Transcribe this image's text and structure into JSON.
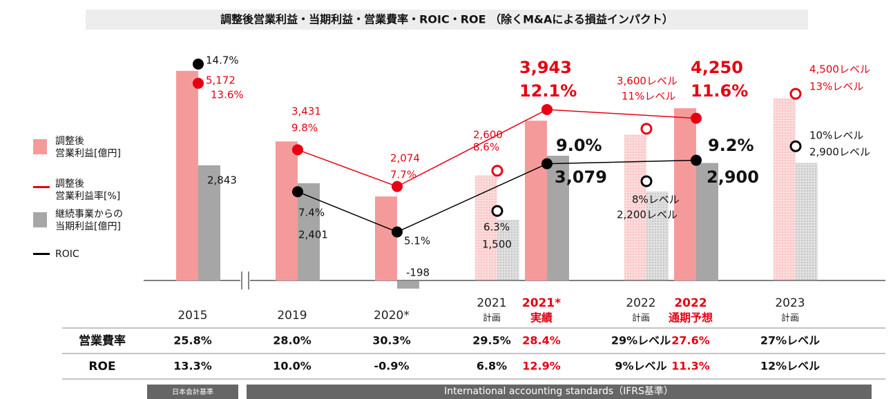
{
  "chart_data": {
    "type": "combo",
    "title": "調整後営業利益・当期利益・営業費率・ROIC・ROE （除くM&Aによる損益インパクト）",
    "categories": [
      {
        "label": "2015"
      },
      {
        "label": "2019"
      },
      {
        "label": "2020*"
      },
      {
        "label": "2021",
        "sub": "計画"
      },
      {
        "label": "2021*",
        "sub": "実績"
      },
      {
        "label": "2022",
        "sub": "計画"
      },
      {
        "label": "2022",
        "sub": "通期予想"
      },
      {
        "label": "2023",
        "sub": "計画"
      }
    ],
    "plan": [
      false,
      false,
      false,
      true,
      false,
      true,
      false,
      true
    ],
    "axis_break": true,
    "ylim": [
      -1000,
      5900
    ],
    "y2lim": [
      0,
      16
    ],
    "series": [
      {
        "name": "調整後\n営業利益[億円]",
        "kind": "bar",
        "color": "#f59a9a",
        "values": [
          5172,
          3431,
          2074,
          2600,
          3943,
          3600,
          4250,
          4500
        ],
        "value_labels": [
          "5,172",
          "3,431",
          "2,074",
          "2,600",
          "3,943",
          "3,600レベル",
          "4,250",
          "4,500レベル"
        ],
        "label_color": "#e60012"
      },
      {
        "name": "継続事業からの\n当期利益[億円]",
        "kind": "bar",
        "color": "#a6a6a6",
        "values": [
          2843,
          2401,
          -198,
          1500,
          3079,
          2200,
          2900,
          2900
        ],
        "value_labels": [
          "2,843",
          "2,401",
          "-198",
          "1,500",
          "3,079",
          "2,200レベル",
          "2,900",
          "2,900レベル"
        ],
        "label_color": "#111111"
      },
      {
        "name": "調整後\n営業利益率[%]",
        "kind": "line",
        "axis": "y2",
        "color": "#e60012",
        "values": [
          13.6,
          9.8,
          7.7,
          8.6,
          12.1,
          11,
          11.6,
          13
        ],
        "value_labels": [
          "13.6%",
          "9.8%",
          "7.7%",
          "8.6%",
          "12.1%",
          "11%レベル",
          "11.6%",
          "13%レベル"
        ],
        "label_color": "#e60012"
      },
      {
        "name": "ROIC",
        "kind": "line",
        "axis": "y2",
        "color": "#000000",
        "values": [
          14.7,
          7.4,
          5.1,
          6.3,
          9.0,
          8,
          9.2,
          10
        ],
        "value_labels": [
          "14.7%",
          "7.4%",
          "5.1%",
          "6.3%",
          "9.0%",
          "8%レベル",
          "9.2%",
          "10%レベル"
        ],
        "label_color": "#111111"
      }
    ],
    "table": {
      "rows": [
        {
          "label": "営業費率",
          "values": [
            "25.8%",
            "28.0%",
            "30.3%",
            "29.5%",
            "28.4%",
            "29%レベル",
            "27.6%",
            "27%レベル"
          ]
        },
        {
          "label": "ROE",
          "values": [
            "13.3%",
            "10.0%",
            "-0.9%",
            "6.8%",
            "12.9%",
            "9%レベル",
            "11.3%",
            "12%レベル"
          ]
        }
      ]
    },
    "footer": [
      "日本会計基準",
      "International accounting standards（IFRS基準）"
    ]
  }
}
